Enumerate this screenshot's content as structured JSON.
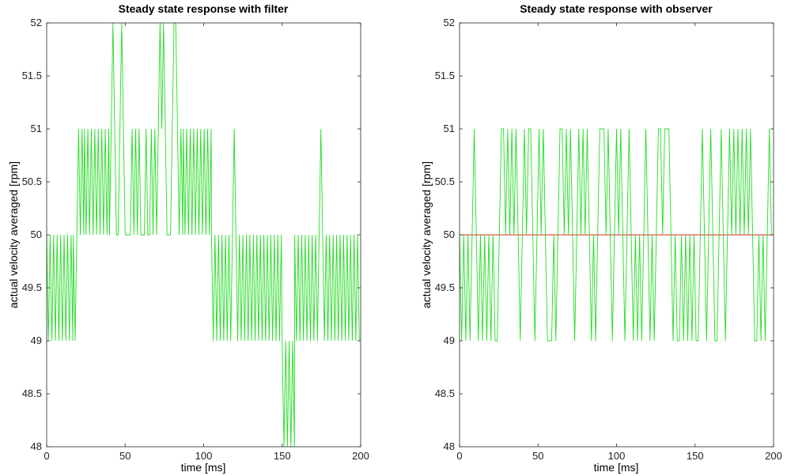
{
  "chart_data": [
    {
      "type": "line",
      "title": "Steady state response with filter",
      "xlabel": "time [ms]",
      "ylabel": "actual velocity averaged [rpm]",
      "xlim": [
        0,
        200
      ],
      "ylim": [
        48,
        52
      ],
      "xticks": [
        0,
        50,
        100,
        150,
        200
      ],
      "xtick_labels": [
        "0",
        "50",
        "100",
        "150",
        "200"
      ],
      "yticks": [
        48,
        48.5,
        49,
        49.5,
        50,
        50.5,
        51,
        51.5,
        52
      ],
      "ytick_labels": [
        "48",
        "48.5",
        "49",
        "49.5",
        "50",
        "50.5",
        "51",
        "51.5",
        "52"
      ],
      "grid": false,
      "series": [
        {
          "color": "#22dd22",
          "segments": [
            {
              "x_start": 0,
              "x_end": 17,
              "values": [
                49,
                50
              ]
            },
            {
              "x_start": 17,
              "x_end": 24,
              "values": [
                49,
                50,
                51
              ]
            },
            {
              "x_start": 24,
              "x_end": 40,
              "values": [
                50,
                51
              ]
            },
            {
              "x_start": 40,
              "x_end": 87,
              "values": [
                50,
                51,
                52
              ]
            },
            {
              "x_start": 87,
              "x_end": 105,
              "values": [
                50,
                51
              ]
            },
            {
              "x_start": 105,
              "x_end": 150,
              "values": [
                49,
                50
              ]
            },
            {
              "x_start": 150,
              "x_end": 158,
              "values": [
                48,
                49
              ]
            },
            {
              "x_start": 158,
              "x_end": 200,
              "values": [
                49,
                50
              ]
            }
          ],
          "spikes": [
            {
              "x": 120,
              "value": 51
            },
            {
              "x": 175,
              "value": 51
            }
          ]
        }
      ]
    },
    {
      "type": "line",
      "title": "Steady state response with observer",
      "xlabel": "time [ms]",
      "ylabel": "actual velocity averaged [rpm]",
      "xlim": [
        0,
        200
      ],
      "ylim": [
        48,
        52
      ],
      "xticks": [
        0,
        50,
        100,
        150,
        200
      ],
      "xtick_labels": [
        "0",
        "50",
        "100",
        "150",
        "200"
      ],
      "yticks": [
        48,
        48.5,
        49,
        49.5,
        50,
        50.5,
        51,
        51.5,
        52
      ],
      "ytick_labels": [
        "48",
        "48.5",
        "49",
        "49.5",
        "50",
        "50.5",
        "51",
        "51.5",
        "52"
      ],
      "grid": false,
      "series": [
        {
          "color": "#22dd22",
          "reference_level": 50,
          "reference_color": "#ee2222",
          "segments": [
            {
              "x_start": 0,
              "x_end": 200,
              "values": [
                49,
                50,
                51
              ]
            }
          ],
          "spikes": []
        }
      ]
    }
  ]
}
